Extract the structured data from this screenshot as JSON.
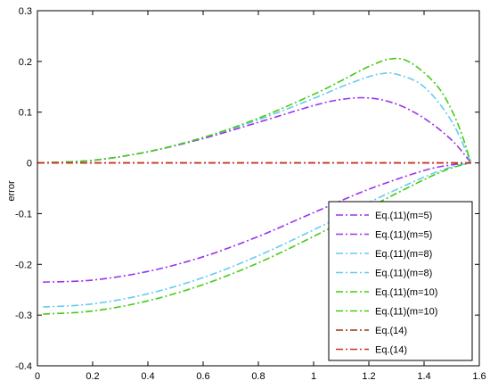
{
  "chart_data": {
    "type": "line",
    "title": "",
    "xlabel": "",
    "ylabel": "error",
    "xlim": [
      0,
      1.6
    ],
    "ylim": [
      -0.4,
      0.3
    ],
    "xticks": [
      "0",
      "0.2",
      "0.4",
      "0.6",
      "0.8",
      "1",
      "1.2",
      "1.4",
      "1.6"
    ],
    "yticks": [
      "0.3",
      "0.2",
      "0.1",
      "0",
      "-0.1",
      "-0.2",
      "-0.3",
      "-0.4"
    ],
    "grid": false,
    "legend_position": "bottom-right",
    "series": [
      {
        "name": "Eq.(11)(m=5)",
        "color": "#9933ee",
        "style": "dash-dot",
        "x": [
          0,
          0.2,
          0.4,
          0.6,
          0.8,
          1.0,
          1.1,
          1.2,
          1.3,
          1.4,
          1.5,
          1.57
        ],
        "y": [
          0,
          0.005,
          0.022,
          0.048,
          0.08,
          0.113,
          0.125,
          0.128,
          0.116,
          0.088,
          0.045,
          0
        ]
      },
      {
        "name": "Eq.(11)(m=5)",
        "color": "#9933ee",
        "style": "dash-dot",
        "x": [
          0.02,
          0.2,
          0.4,
          0.6,
          0.8,
          1.0,
          1.2,
          1.4,
          1.5,
          1.57
        ],
        "y": [
          -0.235,
          -0.231,
          -0.214,
          -0.185,
          -0.145,
          -0.098,
          -0.052,
          -0.015,
          -0.004,
          0
        ]
      },
      {
        "name": "Eq.(11)(m=8)",
        "color": "#66ccee",
        "style": "dash-dot",
        "x": [
          0,
          0.2,
          0.4,
          0.6,
          0.8,
          1.0,
          1.1,
          1.2,
          1.25,
          1.3,
          1.4,
          1.5,
          1.57
        ],
        "y": [
          0,
          0.005,
          0.022,
          0.05,
          0.085,
          0.127,
          0.15,
          0.17,
          0.176,
          0.175,
          0.15,
          0.082,
          0
        ]
      },
      {
        "name": "Eq.(11)(m=8)",
        "color": "#66ccee",
        "style": "dash-dot",
        "x": [
          0.02,
          0.2,
          0.4,
          0.6,
          0.8,
          1.0,
          1.2,
          1.4,
          1.5,
          1.57
        ],
        "y": [
          -0.284,
          -0.278,
          -0.258,
          -0.226,
          -0.183,
          -0.132,
          -0.078,
          -0.028,
          -0.008,
          0
        ]
      },
      {
        "name": "Eq.(11)(m=10)",
        "color": "#44cc11",
        "style": "dash-dot",
        "x": [
          0,
          0.2,
          0.4,
          0.6,
          0.8,
          1.0,
          1.1,
          1.2,
          1.28,
          1.35,
          1.45,
          1.52,
          1.57
        ],
        "y": [
          0,
          0.005,
          0.022,
          0.05,
          0.088,
          0.135,
          0.162,
          0.19,
          0.205,
          0.198,
          0.15,
          0.08,
          0
        ]
      },
      {
        "name": "Eq.(11)(m=10)",
        "color": "#44cc11",
        "style": "dash-dot",
        "x": [
          0.02,
          0.2,
          0.4,
          0.6,
          0.8,
          1.0,
          1.2,
          1.4,
          1.5,
          1.57
        ],
        "y": [
          -0.298,
          -0.292,
          -0.272,
          -0.24,
          -0.197,
          -0.145,
          -0.088,
          -0.033,
          -0.01,
          0
        ]
      },
      {
        "name": "Eq.(14)",
        "color": "#993311",
        "style": "dash-dot",
        "x": [
          0,
          1.57
        ],
        "y": [
          0,
          0
        ]
      },
      {
        "name": "Eq.(14)",
        "color": "#cc3322",
        "style": "dash-dot",
        "x": [
          0,
          1.57
        ],
        "y": [
          0,
          0
        ]
      }
    ]
  }
}
